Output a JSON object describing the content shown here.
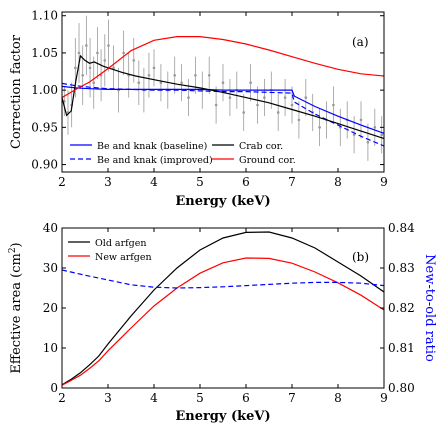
{
  "chart_data": [
    {
      "panel_label": "(a)",
      "type": "line",
      "xlabel": "Energy (keV)",
      "ylabel": "Correction factor",
      "xlim": [
        2,
        9
      ],
      "ylim": [
        0.89,
        1.105
      ],
      "xticks": [
        2,
        3,
        4,
        5,
        6,
        7,
        8,
        9
      ],
      "yticks": [
        0.9,
        0.95,
        1.0,
        1.05,
        1.1
      ],
      "ytick_labels": [
        "0.90",
        "0.95",
        "1.00",
        "1.05",
        "1.10"
      ],
      "grid": false,
      "legend_position": "bottom-left",
      "series": [
        {
          "name": "Be and knak (baseline)",
          "color": "#0000ff",
          "dash": "solid",
          "x": [
            2.0,
            2.3,
            2.6,
            3.0,
            3.5,
            4.0,
            4.5,
            5.0,
            5.5,
            6.0,
            6.5,
            7.0,
            7.05,
            7.5,
            8.0,
            8.5,
            9.0
          ],
          "y": [
            1.005,
            1.003,
            1.002,
            1.001,
            1.001,
            1.001,
            1.001,
            1.001,
            1.0,
            1.0,
            1.0,
            1.0,
            0.992,
            0.978,
            0.965,
            0.953,
            0.942
          ]
        },
        {
          "name": "Be and knak (improved)",
          "color": "#0000ff",
          "dash": "dashed",
          "x": [
            2.0,
            2.3,
            2.6,
            3.0,
            3.5,
            4.0,
            4.5,
            5.0,
            5.5,
            6.0,
            6.5,
            7.0,
            7.05,
            7.5,
            8.0,
            8.5,
            9.0
          ],
          "y": [
            1.009,
            1.006,
            1.004,
            1.002,
            1.001,
            1.0,
            1.0,
            0.999,
            0.998,
            0.998,
            0.997,
            0.996,
            0.984,
            0.968,
            0.953,
            0.938,
            0.925
          ]
        },
        {
          "name": "Crab cor.",
          "color": "#000000",
          "dash": "solid",
          "x": [
            2.0,
            2.1,
            2.2,
            2.3,
            2.4,
            2.5,
            2.6,
            2.7,
            2.8,
            2.9,
            3.0,
            3.3,
            3.6,
            4.0,
            4.5,
            5.0,
            5.5,
            6.0,
            6.5,
            7.0,
            7.5,
            8.0,
            8.5,
            9.0
          ],
          "y": [
            0.99,
            0.966,
            0.972,
            1.012,
            1.046,
            1.04,
            1.036,
            1.038,
            1.035,
            1.032,
            1.03,
            1.024,
            1.019,
            1.014,
            1.008,
            1.003,
            0.997,
            0.99,
            0.983,
            0.974,
            0.965,
            0.955,
            0.945,
            0.935
          ]
        },
        {
          "name": "Ground cor.",
          "color": "#ff0000",
          "dash": "solid",
          "x": [
            2.0,
            2.3,
            2.6,
            3.0,
            3.5,
            4.0,
            4.5,
            5.0,
            5.5,
            6.0,
            6.5,
            7.0,
            7.5,
            8.0,
            8.5,
            9.0
          ],
          "y": [
            0.99,
            1.001,
            1.011,
            1.029,
            1.053,
            1.067,
            1.072,
            1.072,
            1.068,
            1.062,
            1.054,
            1.045,
            1.036,
            1.028,
            1.022,
            1.019
          ]
        }
      ],
      "scatter_data": {
        "name": "data points with error bars",
        "color": "#999999",
        "x": [
          2.05,
          2.13,
          2.21,
          2.29,
          2.37,
          2.45,
          2.53,
          2.61,
          2.69,
          2.77,
          2.85,
          2.93,
          3.01,
          3.12,
          3.23,
          3.34,
          3.45,
          3.56,
          3.67,
          3.78,
          3.89,
          4.0,
          4.15,
          4.3,
          4.45,
          4.6,
          4.75,
          4.9,
          5.05,
          5.2,
          5.35,
          5.5,
          5.65,
          5.8,
          5.95,
          6.1,
          6.25,
          6.4,
          6.55,
          6.7,
          6.85,
          7.0,
          7.15,
          7.3,
          7.45,
          7.6,
          7.75,
          7.9,
          8.05,
          8.2,
          8.35,
          8.5,
          8.65,
          8.8,
          8.95
        ],
        "y": [
          0.985,
          0.97,
          0.98,
          1.03,
          1.05,
          1.02,
          1.06,
          1.03,
          1.01,
          1.05,
          1.02,
          1.04,
          1.06,
          1.03,
          1.0,
          1.05,
          1.02,
          1.04,
          1.01,
          1.0,
          1.02,
          1.03,
          1.01,
          1.0,
          1.02,
          1.01,
          0.99,
          1.02,
          1.0,
          1.02,
          0.98,
          1.01,
          0.99,
          1.0,
          0.97,
          1.01,
          0.98,
          0.99,
          1.0,
          0.97,
          0.99,
          0.98,
          0.96,
          0.99,
          0.97,
          0.95,
          0.96,
          0.98,
          0.95,
          0.96,
          0.94,
          0.96,
          0.93,
          0.95,
          0.94
        ],
        "err": [
          0.02,
          0.03,
          0.03,
          0.04,
          0.04,
          0.04,
          0.04,
          0.04,
          0.035,
          0.035,
          0.035,
          0.035,
          0.035,
          0.03,
          0.03,
          0.03,
          0.03,
          0.03,
          0.03,
          0.03,
          0.03,
          0.025,
          0.025,
          0.025,
          0.025,
          0.025,
          0.025,
          0.025,
          0.025,
          0.025,
          0.025,
          0.025,
          0.025,
          0.025,
          0.025,
          0.025,
          0.025,
          0.025,
          0.025,
          0.025,
          0.025,
          0.025,
          0.025,
          0.025,
          0.025,
          0.025,
          0.025,
          0.025,
          0.025,
          0.025,
          0.025,
          0.025,
          0.025,
          0.025,
          0.025
        ]
      }
    },
    {
      "panel_label": "(b)",
      "type": "line",
      "xlabel": "Energy (keV)",
      "ylabel": "Effective area (cm²)",
      "y2label": "New-to-old ratio",
      "xlim": [
        2,
        9
      ],
      "ylim": [
        0,
        40
      ],
      "y2lim": [
        0.8,
        0.84
      ],
      "xticks": [
        2,
        3,
        4,
        5,
        6,
        7,
        8,
        9
      ],
      "yticks": [
        0,
        10,
        20,
        30,
        40
      ],
      "y2ticks": [
        0.8,
        0.81,
        0.82,
        0.83,
        0.84
      ],
      "y2tick_labels": [
        "0.80",
        "0.81",
        "0.82",
        "0.83",
        "0.84"
      ],
      "grid": false,
      "legend_position": "top-left",
      "series": [
        {
          "name": "Old arfgen",
          "color": "#000000",
          "dash": "solid",
          "axis": "left",
          "x": [
            2.0,
            2.2,
            2.4,
            2.6,
            2.8,
            3.0,
            3.5,
            4.0,
            4.5,
            5.0,
            5.5,
            6.0,
            6.5,
            7.0,
            7.5,
            8.0,
            8.5,
            9.0
          ],
          "y": [
            0.8,
            2.2,
            3.8,
            5.8,
            8.0,
            11.0,
            18.0,
            24.5,
            30.0,
            34.5,
            37.5,
            38.9,
            39.0,
            37.5,
            35.0,
            31.5,
            28.0,
            24.0
          ]
        },
        {
          "name": "New arfgen",
          "color": "#ff0000",
          "dash": "solid",
          "axis": "left",
          "x": [
            2.0,
            2.2,
            2.4,
            2.6,
            2.8,
            3.0,
            3.5,
            4.0,
            4.5,
            5.0,
            5.5,
            6.0,
            6.5,
            7.0,
            7.5,
            8.0,
            8.5,
            9.0
          ],
          "y": [
            0.7,
            1.9,
            3.2,
            4.9,
            6.8,
            9.3,
            15.0,
            20.5,
            25.0,
            28.7,
            31.3,
            32.5,
            32.4,
            31.2,
            29.0,
            26.3,
            23.2,
            19.5
          ]
        },
        {
          "name": "New-to-old ratio",
          "color": "#0000ff",
          "dash": "dashed",
          "axis": "right",
          "x": [
            2.0,
            2.5,
            3.0,
            3.5,
            4.0,
            4.5,
            5.0,
            5.5,
            6.0,
            6.5,
            7.0,
            7.5,
            8.0,
            8.5,
            9.0
          ],
          "y": [
            0.8295,
            0.8282,
            0.827,
            0.8258,
            0.8252,
            0.825,
            0.8251,
            0.8253,
            0.8256,
            0.8259,
            0.8262,
            0.8264,
            0.8264,
            0.8262,
            0.8256
          ]
        }
      ]
    }
  ]
}
